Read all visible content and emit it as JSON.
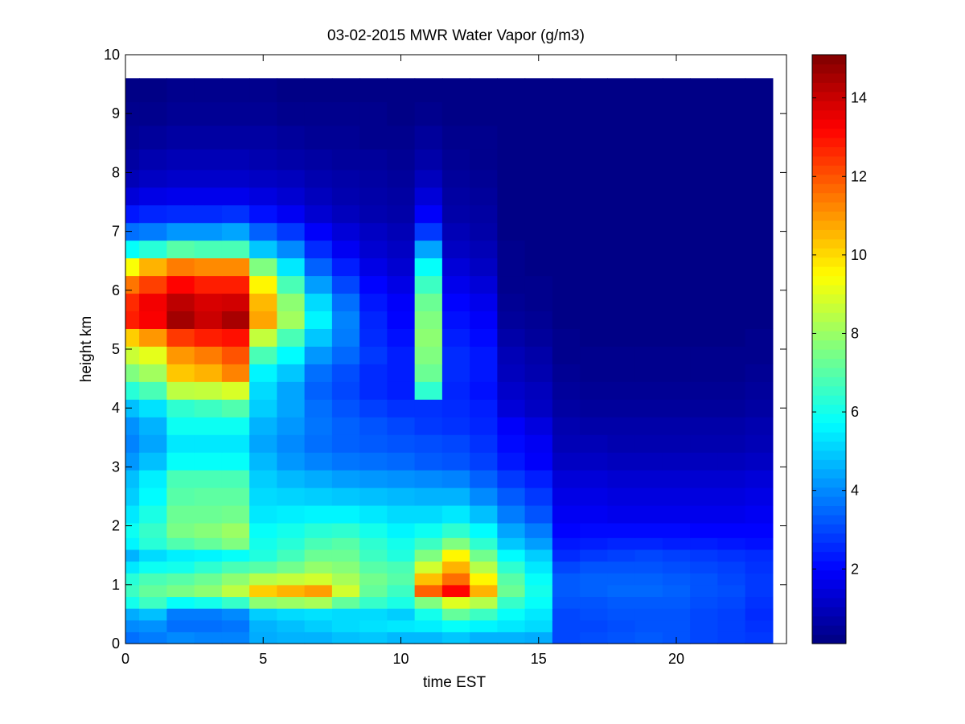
{
  "chart_data": {
    "type": "heatmap",
    "title": "03-02-2015 MWR Water Vapor (g/m3)",
    "xlabel": "time EST",
    "ylabel": "height km",
    "xlim": [
      0,
      24
    ],
    "ylim": [
      0,
      10
    ],
    "x_ticks": [
      0,
      5,
      10,
      15,
      20
    ],
    "y_ticks": [
      0,
      1,
      2,
      3,
      4,
      5,
      6,
      7,
      8,
      9,
      10
    ],
    "colorbar": {
      "colormap": "jet",
      "range": [
        0.1,
        15.1
      ],
      "ticks": [
        2,
        4,
        6,
        8,
        10,
        12,
        14
      ]
    },
    "x": [
      0,
      1,
      2,
      3,
      4,
      5,
      6,
      7,
      8,
      9,
      10,
      11,
      12,
      13,
      14,
      15,
      16,
      17,
      18,
      19,
      20,
      21,
      22,
      23
    ],
    "y": [
      0.1,
      0.3,
      0.5,
      0.7,
      0.9,
      1.1,
      1.3,
      1.5,
      1.7,
      1.9,
      2.2,
      2.5,
      2.8,
      3.1,
      3.4,
      3.7,
      4.0,
      4.3,
      4.6,
      4.9,
      5.2,
      5.5,
      5.8,
      6.1,
      6.4,
      6.7,
      7.0,
      7.3,
      7.6,
      7.9,
      8.2,
      8.6,
      9.0,
      9.4
    ],
    "z": [
      [
        3.6,
        3.8,
        4.0,
        3.9,
        3.9,
        4.5,
        4.6,
        4.6,
        4.8,
        4.9,
        4.7,
        4.7,
        4.9,
        4.6,
        4.6,
        4.5,
        3.0,
        3.1,
        3.2,
        3.3,
        3.2,
        3.0,
        2.9,
        2.8
      ],
      [
        4.0,
        4.1,
        3.6,
        3.6,
        3.7,
        4.6,
        4.8,
        5.0,
        5.2,
        5.3,
        5.4,
        5.5,
        5.8,
        5.6,
        5.4,
        5.2,
        3.0,
        3.0,
        3.1,
        3.2,
        3.2,
        3.0,
        2.9,
        2.7
      ],
      [
        4.5,
        4.8,
        3.8,
        3.8,
        4.0,
        5.0,
        5.2,
        5.3,
        5.2,
        5.2,
        5.0,
        6.0,
        7.2,
        6.6,
        5.8,
        5.4,
        3.0,
        3.1,
        3.2,
        3.2,
        3.2,
        3.0,
        2.9,
        2.6
      ],
      [
        6.0,
        6.6,
        5.8,
        6.0,
        6.5,
        7.8,
        8.0,
        8.2,
        7.2,
        6.5,
        6.1,
        7.6,
        9.0,
        8.4,
        6.5,
        5.8,
        3.2,
        3.2,
        3.3,
        3.3,
        3.3,
        3.1,
        3.0,
        2.7
      ],
      [
        6.6,
        7.2,
        7.5,
        7.8,
        8.5,
        10.2,
        10.6,
        10.9,
        8.8,
        7.2,
        6.6,
        11.8,
        13.2,
        10.6,
        7.3,
        6.0,
        3.3,
        3.4,
        3.5,
        3.5,
        3.4,
        3.2,
        3.1,
        2.8
      ],
      [
        6.3,
        6.8,
        7.0,
        7.3,
        7.8,
        8.4,
        8.6,
        8.8,
        8.2,
        7.4,
        7.0,
        10.4,
        11.6,
        9.6,
        7.0,
        5.8,
        3.3,
        3.4,
        3.4,
        3.4,
        3.3,
        3.2,
        3.0,
        2.8
      ],
      [
        5.4,
        5.9,
        6.0,
        6.4,
        6.8,
        7.0,
        7.4,
        7.9,
        7.7,
        7.0,
        6.8,
        8.8,
        10.6,
        8.4,
        6.4,
        5.4,
        3.0,
        3.2,
        3.2,
        3.2,
        3.1,
        3.0,
        2.9,
        2.7
      ],
      [
        4.6,
        5.2,
        5.5,
        5.6,
        5.8,
        6.2,
        6.7,
        7.3,
        7.3,
        6.6,
        6.2,
        7.6,
        9.6,
        7.4,
        5.7,
        5.0,
        2.6,
        2.8,
        2.9,
        3.0,
        2.9,
        2.8,
        2.7,
        2.6
      ],
      [
        5.6,
        6.3,
        6.9,
        7.2,
        7.6,
        6.0,
        6.3,
        6.8,
        7.0,
        6.4,
        6.0,
        6.6,
        7.6,
        6.4,
        4.9,
        4.3,
        2.3,
        2.4,
        2.5,
        2.5,
        2.4,
        2.4,
        2.3,
        2.2
      ],
      [
        5.9,
        6.5,
        7.5,
        7.7,
        8.0,
        5.8,
        6.0,
        6.3,
        6.4,
        6.0,
        5.6,
        5.9,
        6.4,
        5.7,
        4.4,
        3.8,
        2.0,
        2.1,
        2.1,
        2.1,
        2.1,
        2.0,
        2.0,
        2.0
      ],
      [
        5.4,
        6.1,
        7.3,
        7.3,
        7.4,
        5.4,
        5.5,
        5.6,
        5.6,
        5.4,
        5.2,
        5.2,
        5.4,
        4.8,
        3.8,
        3.2,
        1.8,
        1.8,
        1.7,
        1.7,
        1.7,
        1.7,
        1.7,
        1.8
      ],
      [
        5.0,
        5.7,
        7.0,
        7.1,
        7.1,
        5.2,
        5.1,
        5.0,
        4.9,
        4.8,
        4.7,
        4.6,
        4.6,
        4.0,
        3.3,
        2.8,
        1.6,
        1.6,
        1.5,
        1.5,
        1.5,
        1.5,
        1.5,
        1.6
      ],
      [
        4.8,
        5.5,
        6.8,
        6.8,
        6.8,
        5.0,
        4.7,
        4.5,
        4.3,
        4.2,
        4.1,
        4.0,
        3.9,
        3.4,
        2.8,
        2.4,
        1.4,
        1.4,
        1.3,
        1.3,
        1.3,
        1.3,
        1.3,
        1.4
      ],
      [
        4.2,
        4.8,
        5.8,
        5.8,
        5.8,
        4.7,
        4.2,
        3.9,
        3.7,
        3.6,
        3.5,
        3.3,
        3.2,
        2.9,
        2.3,
        1.9,
        1.1,
        1.1,
        1.0,
        1.0,
        1.0,
        1.0,
        1.0,
        1.1
      ],
      [
        3.9,
        4.4,
        5.4,
        5.4,
        5.4,
        4.4,
        4.0,
        3.6,
        3.4,
        3.3,
        3.2,
        3.1,
        3.0,
        2.7,
        2.1,
        1.8,
        0.9,
        0.9,
        0.8,
        0.8,
        0.8,
        0.8,
        0.8,
        0.9
      ],
      [
        4.1,
        4.6,
        5.9,
        5.9,
        5.9,
        4.6,
        4.2,
        3.7,
        3.4,
        3.2,
        3.0,
        2.8,
        2.7,
        2.5,
        1.9,
        1.5,
        0.8,
        0.7,
        0.7,
        0.7,
        0.7,
        0.7,
        0.7,
        0.8
      ],
      [
        4.8,
        5.3,
        6.4,
        6.6,
        6.9,
        5.0,
        4.4,
        3.6,
        3.2,
        2.9,
        2.7,
        2.7,
        2.6,
        2.4,
        1.4,
        1.1,
        0.6,
        0.5,
        0.5,
        0.5,
        0.5,
        0.5,
        0.5,
        0.6
      ],
      [
        6.3,
        6.8,
        8.5,
        8.6,
        8.9,
        5.2,
        4.4,
        3.4,
        3.0,
        2.6,
        2.4,
        6.4,
        2.5,
        2.2,
        1.2,
        1.0,
        0.5,
        0.4,
        0.4,
        0.4,
        0.4,
        0.4,
        0.4,
        0.5
      ],
      [
        7.6,
        8.1,
        10.3,
        10.6,
        11.3,
        5.6,
        4.9,
        3.6,
        3.1,
        2.6,
        2.4,
        7.3,
        2.6,
        2.3,
        1.0,
        0.8,
        0.4,
        0.3,
        0.3,
        0.3,
        0.3,
        0.3,
        0.3,
        0.4
      ],
      [
        8.7,
        9.1,
        11.0,
        11.4,
        12.0,
        6.8,
        5.7,
        4.2,
        3.5,
        2.8,
        2.4,
        7.6,
        2.6,
        2.3,
        0.9,
        0.7,
        0.3,
        0.3,
        0.3,
        0.3,
        0.3,
        0.3,
        0.3,
        0.3
      ],
      [
        10.2,
        11.0,
        12.4,
        12.8,
        13.0,
        8.6,
        6.8,
        4.9,
        3.8,
        2.6,
        2.2,
        7.8,
        2.4,
        2.1,
        0.7,
        0.5,
        0.3,
        0.2,
        0.2,
        0.2,
        0.2,
        0.2,
        0.2,
        0.3
      ],
      [
        12.8,
        13.3,
        14.6,
        14.0,
        14.5,
        10.8,
        8.1,
        5.6,
        3.9,
        2.5,
        2.0,
        7.6,
        2.2,
        1.9,
        0.5,
        0.4,
        0.2,
        0.2,
        0.2,
        0.2,
        0.2,
        0.2,
        0.2,
        0.2
      ],
      [
        12.6,
        13.4,
        14.2,
        13.8,
        13.9,
        10.5,
        7.8,
        5.2,
        3.6,
        2.3,
        1.9,
        7.3,
        2.0,
        1.7,
        0.4,
        0.3,
        0.2,
        0.2,
        0.2,
        0.2,
        0.2,
        0.2,
        0.2,
        0.2
      ],
      [
        11.5,
        12.3,
        13.2,
        12.8,
        12.8,
        9.6,
        6.8,
        4.3,
        3.0,
        2.0,
        1.6,
        6.6,
        1.7,
        1.4,
        0.3,
        0.3,
        0.2,
        0.2,
        0.2,
        0.2,
        0.2,
        0.2,
        0.2,
        0.2
      ],
      [
        9.4,
        10.6,
        11.4,
        11.2,
        11.2,
        7.6,
        5.4,
        3.4,
        2.4,
        1.6,
        1.3,
        5.8,
        1.4,
        1.1,
        0.3,
        0.2,
        0.2,
        0.2,
        0.2,
        0.2,
        0.2,
        0.2,
        0.2,
        0.2
      ],
      [
        5.8,
        6.3,
        7.0,
        6.8,
        6.8,
        4.9,
        4.0,
        2.6,
        1.8,
        1.3,
        1.1,
        4.4,
        1.1,
        0.9,
        0.3,
        0.2,
        0.2,
        0.2,
        0.2,
        0.2,
        0.2,
        0.2,
        0.2,
        0.2
      ],
      [
        3.6,
        3.8,
        4.2,
        4.2,
        4.4,
        3.4,
        2.8,
        1.9,
        1.4,
        1.1,
        0.9,
        2.8,
        0.9,
        0.7,
        0.2,
        0.2,
        0.2,
        0.2,
        0.2,
        0.2,
        0.2,
        0.2,
        0.2,
        0.2
      ],
      [
        2.3,
        2.5,
        2.6,
        2.6,
        2.7,
        2.2,
        1.8,
        1.3,
        1.0,
        0.8,
        0.7,
        1.9,
        0.7,
        0.6,
        0.2,
        0.2,
        0.2,
        0.2,
        0.2,
        0.2,
        0.2,
        0.2,
        0.2,
        0.2
      ],
      [
        1.4,
        1.6,
        1.7,
        1.7,
        1.7,
        1.5,
        1.3,
        1.0,
        0.8,
        0.7,
        0.6,
        1.4,
        0.6,
        0.5,
        0.2,
        0.2,
        0.2,
        0.2,
        0.2,
        0.2,
        0.2,
        0.2,
        0.2,
        0.2
      ],
      [
        0.9,
        1.1,
        1.2,
        1.2,
        1.2,
        1.1,
        1.0,
        0.8,
        0.7,
        0.6,
        0.5,
        1.0,
        0.5,
        0.4,
        0.2,
        0.2,
        0.2,
        0.2,
        0.2,
        0.2,
        0.2,
        0.2,
        0.2,
        0.2
      ],
      [
        0.6,
        0.8,
        0.9,
        0.9,
        0.9,
        0.8,
        0.7,
        0.6,
        0.5,
        0.5,
        0.4,
        0.7,
        0.4,
        0.3,
        0.2,
        0.2,
        0.2,
        0.2,
        0.2,
        0.2,
        0.2,
        0.2,
        0.2,
        0.2
      ],
      [
        0.4,
        0.5,
        0.6,
        0.6,
        0.6,
        0.6,
        0.5,
        0.4,
        0.4,
        0.3,
        0.3,
        0.5,
        0.3,
        0.3,
        0.2,
        0.2,
        0.2,
        0.2,
        0.2,
        0.2,
        0.2,
        0.2,
        0.2,
        0.2
      ],
      [
        0.3,
        0.3,
        0.4,
        0.4,
        0.4,
        0.4,
        0.3,
        0.3,
        0.3,
        0.3,
        0.2,
        0.3,
        0.2,
        0.2,
        0.2,
        0.2,
        0.2,
        0.2,
        0.2,
        0.2,
        0.2,
        0.2,
        0.2,
        0.2
      ],
      [
        0.2,
        0.2,
        0.3,
        0.3,
        0.3,
        0.3,
        0.2,
        0.2,
        0.2,
        0.2,
        0.2,
        0.2,
        0.2,
        0.2,
        0.2,
        0.2,
        0.2,
        0.2,
        0.2,
        0.2,
        0.2,
        0.2,
        0.2,
        0.2
      ]
    ]
  }
}
